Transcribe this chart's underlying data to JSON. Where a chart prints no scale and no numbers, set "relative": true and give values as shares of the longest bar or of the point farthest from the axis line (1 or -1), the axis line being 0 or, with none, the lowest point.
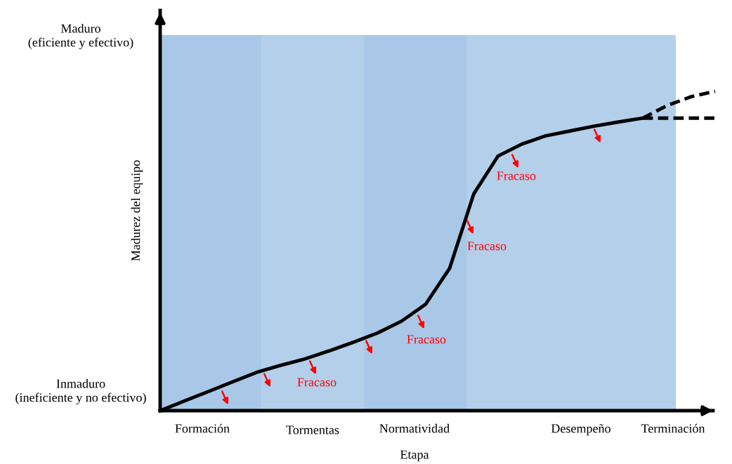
{
  "chart_data": {
    "type": "line",
    "relative": true,
    "xlabel": "Etapa",
    "ylabel": "Madurez del equipo",
    "categories": [
      null,
      null,
      null,
      null,
      null,
      null,
      null,
      null,
      null,
      null,
      null,
      null,
      null,
      null,
      null,
      null,
      null,
      null,
      null,
      null,
      null,
      null,
      null,
      null
    ],
    "series": [
      {
        "color": "#000000",
        "line_style": "solid",
        "values": [
          0,
          0.03,
          0.06,
          0.09,
          0.12,
          0.142,
          0.162,
          0.187,
          0.214,
          0.243,
          0.28,
          0.333,
          0.446,
          0.679,
          0.797,
          0.835,
          0.861,
          0.876,
          0.891,
          0.904,
          0.916,
          null,
          null,
          null
        ]
      },
      {
        "color": "#000000",
        "line_style": "dashed",
        "values": [
          null,
          null,
          null,
          null,
          null,
          null,
          null,
          null,
          null,
          null,
          null,
          null,
          null,
          null,
          null,
          null,
          null,
          null,
          null,
          null,
          0.916,
          0.955,
          0.983,
          1.0
        ]
      },
      {
        "color": "#000000",
        "line_style": "dashed",
        "values": [
          null,
          null,
          null,
          null,
          null,
          null,
          null,
          null,
          null,
          null,
          null,
          null,
          null,
          null,
          null,
          null,
          null,
          null,
          null,
          null,
          0.916,
          0.916,
          0.916,
          0.916
        ]
      }
    ],
    "annotations": [
      "Maduro\n(eficiente y efectivo)",
      "Inmaduro\n(ineficiente y no efectivo)",
      "Formación",
      "Tormentas",
      "Normatividad",
      "Desempeño",
      "Terminación",
      "Fracaso",
      "Fracaso",
      "Fracaso",
      "Fracaso"
    ],
    "marker": "none"
  }
}
